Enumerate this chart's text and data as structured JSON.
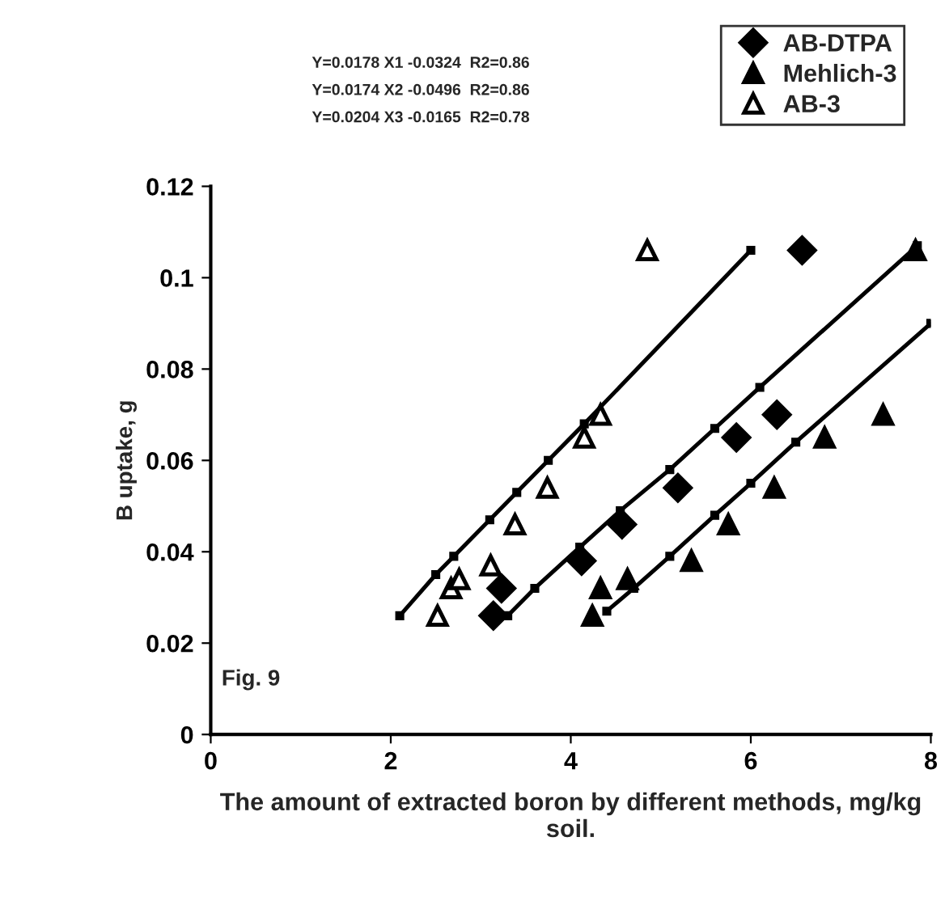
{
  "chart_data": {
    "type": "scatter",
    "xlabel": "The amount of extracted boron by different methods, mg/kg soil.",
    "ylabel": "B uptake, g",
    "annotations": [
      "Y=0.0178 X1 -0.0324  R2=0.86",
      "Y=0.0174 X2 -0.0496  R2=0.86",
      "Y=0.0204 X3 -0.0165  R2=0.78",
      "Fig. 9"
    ],
    "xlim": [
      0,
      8
    ],
    "xticks": [
      0,
      2,
      4,
      6,
      8
    ],
    "ylim": [
      0,
      0.12
    ],
    "yticks": [
      0,
      0.02,
      0.04,
      0.06,
      0.08,
      0.1,
      0.12
    ],
    "grid": false,
    "legend": "top right",
    "series": [
      {
        "name": "AB-DTPA",
        "marker": "diamond",
        "color": "#000000",
        "x": [
          3.14,
          3.23,
          4.12,
          4.57,
          5.19,
          5.84,
          6.29,
          6.57
        ],
        "values": [
          0.026,
          0.032,
          0.038,
          0.046,
          0.054,
          0.065,
          0.07,
          0.106
        ]
      },
      {
        "name": "Mehlich-3",
        "marker": "triangle",
        "color": "#000000",
        "x": [
          4.24,
          4.33,
          4.63,
          5.34,
          5.75,
          6.26,
          6.82,
          7.47,
          7.83
        ],
        "values": [
          0.026,
          0.032,
          0.034,
          0.038,
          0.046,
          0.054,
          0.065,
          0.07,
          0.106
        ]
      },
      {
        "name": "AB-3",
        "marker": "triangle",
        "color": "#ffffff",
        "x": [
          2.52,
          2.67,
          2.76,
          3.11,
          3.38,
          3.74,
          4.15,
          4.33,
          4.85
        ],
        "values": [
          0.026,
          0.032,
          0.034,
          0.037,
          0.046,
          0.054,
          0.065,
          0.07,
          0.106
        ]
      },
      {
        "type": "line",
        "marker": "square",
        "color": "#000000",
        "x": [
          3.3,
          3.6,
          4.1,
          4.55,
          5.1,
          5.6,
          6.1,
          7.85
        ],
        "values": [
          0.026,
          0.032,
          0.041,
          0.049,
          0.058,
          0.067,
          0.076,
          0.107
        ]
      },
      {
        "type": "line",
        "marker": "square",
        "color": "#000000",
        "x": [
          4.4,
          4.7,
          5.1,
          5.6,
          6.0,
          6.5,
          8.0
        ],
        "values": [
          0.027,
          0.032,
          0.039,
          0.048,
          0.055,
          0.064,
          0.09
        ]
      },
      {
        "type": "line",
        "marker": "square",
        "color": "#000000",
        "x": [
          2.1,
          2.5,
          2.7,
          3.1,
          3.4,
          3.75,
          4.15,
          6.0
        ],
        "values": [
          0.026,
          0.035,
          0.039,
          0.047,
          0.053,
          0.06,
          0.068,
          0.106
        ]
      }
    ]
  }
}
